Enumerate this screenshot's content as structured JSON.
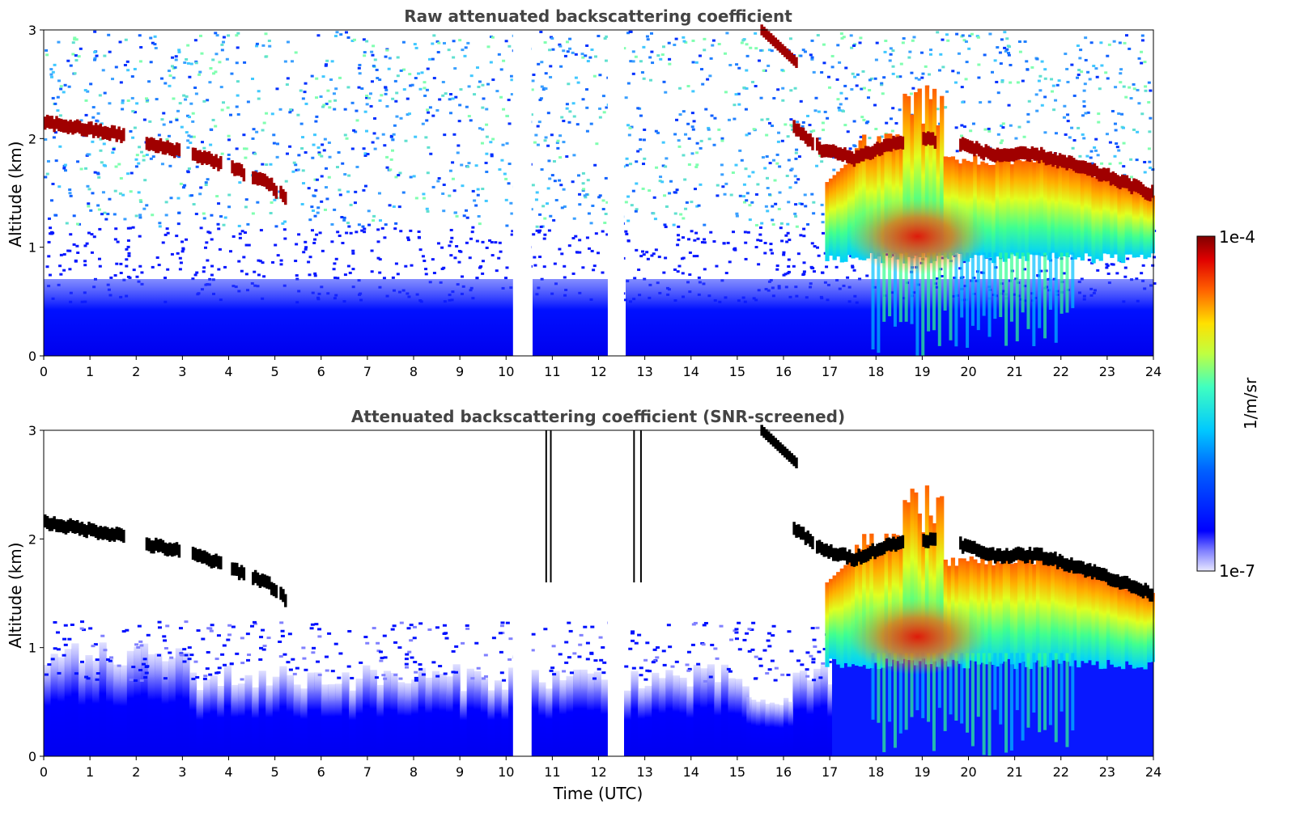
{
  "chart_data": [
    {
      "type": "heatmap",
      "title": "Raw attenuated backscattering coefficient",
      "xlabel": "",
      "ylabel": "Altitude (km)",
      "xlim": [
        0,
        24
      ],
      "ylim": [
        0,
        3
      ],
      "xticks": [
        "0",
        "1",
        "2",
        "3",
        "4",
        "5",
        "6",
        "7",
        "8",
        "9",
        "10",
        "11",
        "12",
        "13",
        "14",
        "15",
        "16",
        "17",
        "18",
        "19",
        "20",
        "21",
        "22",
        "23",
        "24"
      ],
      "yticks": [
        "0",
        "1",
        "2",
        "3"
      ],
      "screened": false
    },
    {
      "type": "heatmap",
      "title": "Attenuated backscattering coefficient (SNR-screened)",
      "xlabel": "Time (UTC)",
      "ylabel": "Altitude (km)",
      "xlim": [
        0,
        24
      ],
      "ylim": [
        0,
        3
      ],
      "xticks": [
        "0",
        "1",
        "2",
        "3",
        "4",
        "5",
        "6",
        "7",
        "8",
        "9",
        "10",
        "11",
        "12",
        "13",
        "14",
        "15",
        "16",
        "17",
        "18",
        "19",
        "20",
        "21",
        "22",
        "23",
        "24"
      ],
      "yticks": [
        "0",
        "1",
        "2",
        "3"
      ],
      "screened": true
    }
  ],
  "features": {
    "data_gaps_utc": [
      [
        10.15,
        10.55
      ],
      [
        12.2,
        12.55
      ]
    ],
    "cloud_layer_km": [
      [
        0.0,
        2.15
      ],
      [
        1.7,
        2.03
      ],
      [
        2.2,
        1.95
      ],
      [
        2.8,
        1.9
      ],
      [
        3.5,
        1.82
      ],
      [
        4.2,
        1.7
      ],
      [
        4.8,
        1.6
      ],
      [
        5.2,
        1.45
      ],
      [
        16.2,
        2.1
      ],
      [
        16.8,
        1.9
      ],
      [
        17.5,
        1.82
      ],
      [
        18.3,
        1.95
      ],
      [
        19.0,
        2.0
      ],
      [
        19.8,
        1.95
      ],
      [
        20.5,
        1.85
      ],
      [
        21.5,
        1.85
      ],
      [
        22.3,
        1.75
      ],
      [
        23.0,
        1.65
      ],
      [
        23.9,
        1.5
      ]
    ],
    "aerosol_max_km_at_19_utc": 2.5,
    "aerosol_core_km": 1.1
  },
  "colorbar": {
    "max_label": "1e-4",
    "min_label": "1e-7",
    "label": "1/m/sr",
    "colormap": "jet"
  }
}
